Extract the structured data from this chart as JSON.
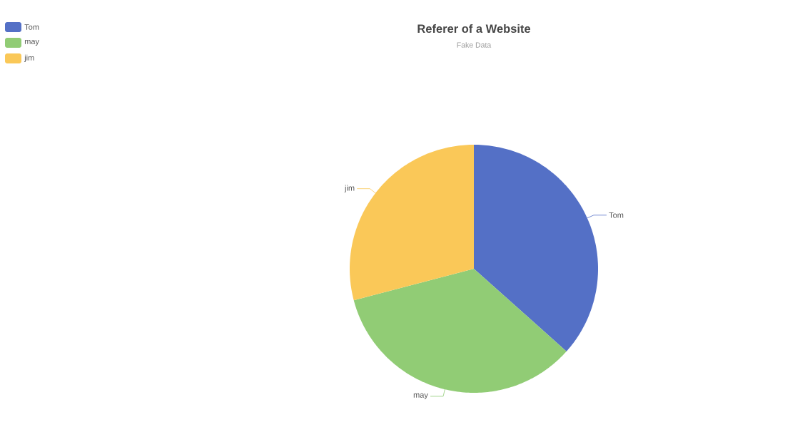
{
  "chart_data": {
    "type": "pie",
    "title": "Referer of a Website",
    "subtitle": "Fake Data",
    "categories": [
      "Tom",
      "may",
      "jim"
    ],
    "values": [
      36.6,
      34.3,
      29.1
    ],
    "colors": [
      "#5470c6",
      "#91cc75",
      "#fac858"
    ],
    "legend": "top left"
  }
}
